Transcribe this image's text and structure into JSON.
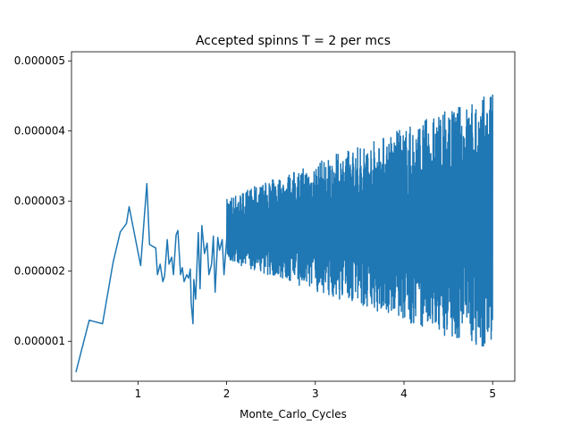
{
  "chart_data": {
    "type": "line",
    "title": "Accepted spinns T = 2 per mcs",
    "xlabel": "Monte_Carlo_Cycles",
    "ylabel": "",
    "xlim": [
      0.25,
      5.25
    ],
    "ylim": [
      4.3e-07,
      5.13e-06
    ],
    "xticks": [
      1,
      2,
      3,
      4,
      5
    ],
    "xtick_labels": [
      "1",
      "2",
      "3",
      "4",
      "5"
    ],
    "yticks": [
      1e-06,
      2e-06,
      3e-06,
      4e-06,
      5e-06
    ],
    "ytick_labels": [
      "0.000001",
      "0.000002",
      "0.000003",
      "0.000004",
      "0.000005"
    ],
    "grid": false,
    "series": [
      {
        "color": "#1f77b4",
        "x": [
          0.3,
          0.45,
          0.6,
          0.72,
          0.8,
          0.87,
          0.9,
          1.03,
          1.1,
          1.13,
          1.2,
          1.22,
          1.25,
          1.28,
          1.3,
          1.33,
          1.35,
          1.38,
          1.4,
          1.43,
          1.45,
          1.48,
          1.5,
          1.52,
          1.55,
          1.57,
          1.59,
          1.6,
          1.62,
          1.63,
          1.65,
          1.68,
          1.7,
          1.72,
          1.75,
          1.78,
          1.8,
          1.83,
          1.85,
          1.87,
          1.9,
          1.92,
          1.95,
          1.97,
          2.0
        ],
        "y": [
          5.6e-07,
          1.3e-06,
          1.25e-06,
          2.13e-06,
          2.56e-06,
          2.68e-06,
          2.92e-06,
          2.08e-06,
          3.25e-06,
          2.38e-06,
          2.33e-06,
          1.95e-06,
          2.1e-06,
          1.85e-06,
          1.93e-06,
          2.45e-06,
          2.1e-06,
          2.2e-06,
          1.95e-06,
          2.52e-06,
          2.58e-06,
          1.95e-06,
          2.05e-06,
          1.85e-06,
          1.95e-06,
          1.9e-06,
          2.03e-06,
          1.55e-06,
          1.25e-06,
          1.88e-06,
          1.6e-06,
          2.55e-06,
          1.75e-06,
          2.65e-06,
          2.25e-06,
          2.4e-06,
          1.95e-06,
          2.1e-06,
          2.5e-06,
          1.7e-06,
          2.48e-06,
          2.3e-06,
          2.45e-06,
          1.95e-06,
          2.45e-06
        ],
        "dense_segment": {
          "x_range": [
            2.0,
            5.0
          ],
          "centerline_start": 2.6e-06,
          "centerline_end": 2.7e-06,
          "amplitude_start": 4.5e-07,
          "amplitude_end": 1.85e-06
        }
      }
    ]
  }
}
